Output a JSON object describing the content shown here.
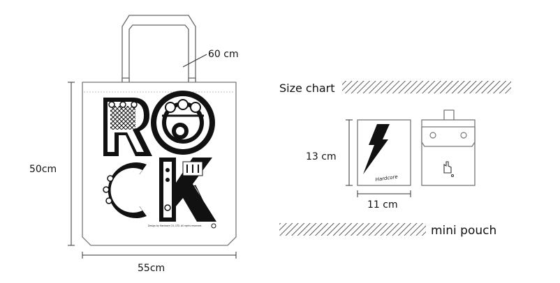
{
  "bag": {
    "handle_label": "60 cm",
    "height_label": "50cm",
    "width_label": "55cm",
    "artwork_letters": [
      "R",
      "O",
      "C",
      "K"
    ],
    "copyright_text": "Design by Hardcore CO, LTD. All rights reserved."
  },
  "size_chart": {
    "title": "Size chart",
    "pouch_height_label": "13 cm",
    "pouch_width_label": "11 cm",
    "pouch_caption": "mini pouch",
    "pouch_script_text": "Hardcore"
  }
}
